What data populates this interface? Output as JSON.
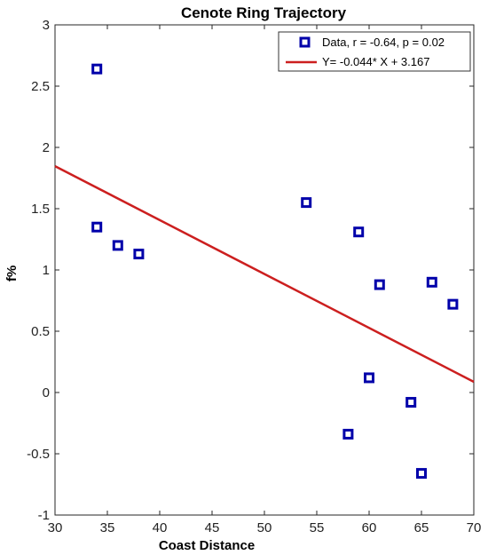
{
  "chart_data": {
    "type": "scatter",
    "title": "Cenote Ring Trajectory",
    "xlabel": "Coast Distance",
    "ylabel": "f%",
    "xlim": [
      30,
      70
    ],
    "ylim": [
      -1,
      3
    ],
    "xticks": [
      30,
      35,
      40,
      45,
      50,
      55,
      60,
      65,
      70
    ],
    "yticks": [
      -1,
      -0.5,
      0,
      0.5,
      1,
      1.5,
      2,
      2.5,
      3
    ],
    "grid": false,
    "legend_position": "top-right",
    "series": [
      {
        "name": "Data, r = -0.64, p = 0.02",
        "type": "scatter",
        "marker": "square",
        "color": "#0000AA",
        "points": [
          {
            "x": 34,
            "y": 2.64
          },
          {
            "x": 34,
            "y": 1.35
          },
          {
            "x": 36,
            "y": 1.2
          },
          {
            "x": 38,
            "y": 1.13
          },
          {
            "x": 54,
            "y": 1.55
          },
          {
            "x": 58,
            "y": -0.34
          },
          {
            "x": 59,
            "y": 1.31
          },
          {
            "x": 60,
            "y": 0.12
          },
          {
            "x": 61,
            "y": 0.88
          },
          {
            "x": 64,
            "y": -0.08
          },
          {
            "x": 65,
            "y": -0.66
          },
          {
            "x": 66,
            "y": 0.9
          },
          {
            "x": 68,
            "y": 0.72
          }
        ]
      },
      {
        "name": "Y= -0.044* X + 3.167",
        "type": "line",
        "color": "#CC1F1F",
        "slope": -0.044,
        "intercept": 3.167
      }
    ]
  }
}
